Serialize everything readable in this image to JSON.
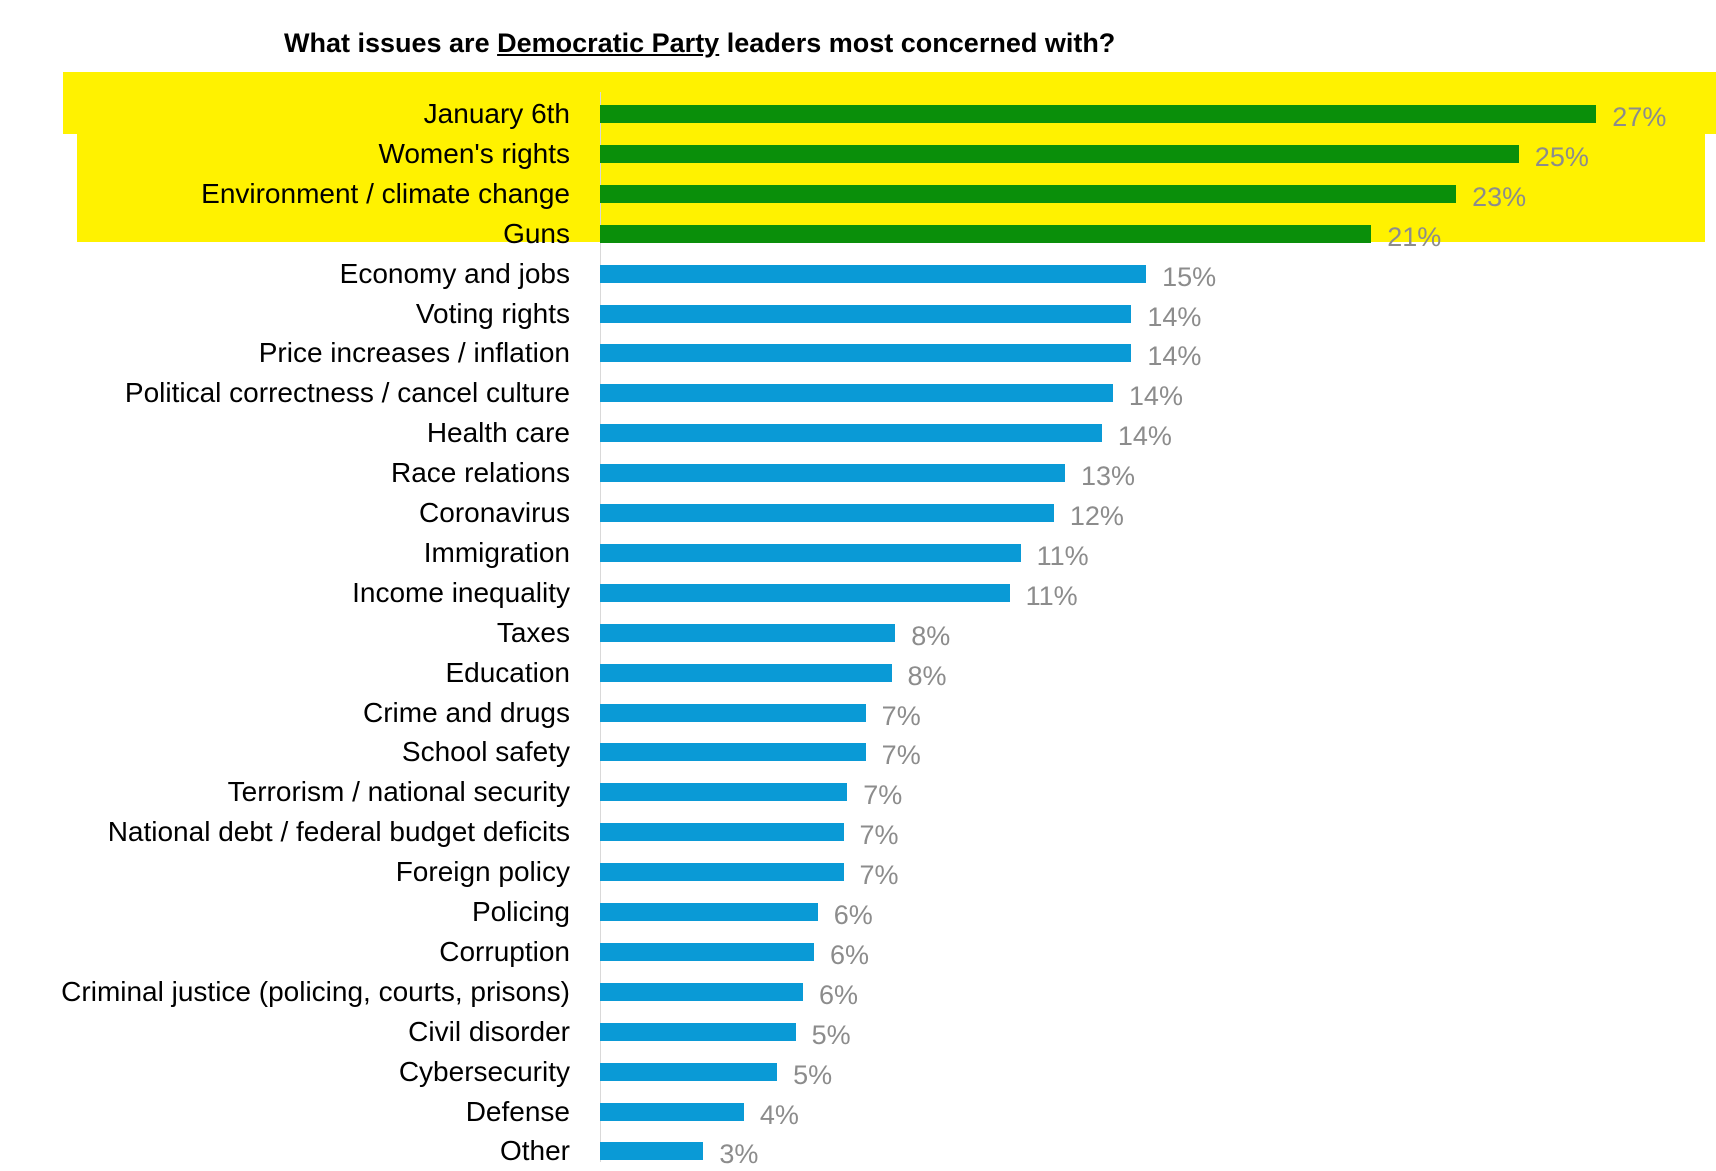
{
  "chart_data": {
    "type": "bar",
    "orientation": "horizontal",
    "title_prefix": "What issues are ",
    "title_underlined": "Democratic Party",
    "title_suffix": " leaders most concerned with?",
    "categories": [
      "January 6th",
      "Women's rights",
      "Environment / climate change",
      "Guns",
      "Economy and jobs",
      "Voting rights",
      "Price increases / inflation",
      "Political correctness / cancel culture",
      "Health care",
      "Race relations",
      "Coronavirus",
      "Immigration",
      "Income inequality",
      "Taxes",
      "Education",
      "Crime and drugs",
      "School safety",
      "Terrorism / national security",
      "National debt / federal budget deficits",
      "Foreign policy",
      "Policing",
      "Corruption",
      "Criminal justice (policing, courts, prisons)",
      "Civil disorder",
      "Cybersecurity",
      "Defense",
      "Other"
    ],
    "values": [
      27,
      25,
      23,
      21,
      15,
      14,
      14,
      14,
      14,
      13,
      12,
      11,
      11,
      8,
      8,
      7,
      7,
      7,
      7,
      7,
      6,
      6,
      6,
      5,
      5,
      4,
      3
    ],
    "bar_lengths": [
      27.0,
      24.9,
      23.2,
      20.9,
      14.8,
      14.4,
      14.4,
      13.9,
      13.6,
      12.6,
      12.3,
      11.4,
      11.1,
      8.0,
      7.9,
      7.2,
      7.2,
      6.7,
      6.6,
      6.6,
      5.9,
      5.8,
      5.5,
      5.3,
      4.8,
      3.9,
      2.8
    ],
    "labels": [
      "27%",
      "25%",
      "23%",
      "21%",
      "15%",
      "14%",
      "14%",
      "14%",
      "14%",
      "13%",
      "12%",
      "11%",
      "11%",
      "8%",
      "8%",
      "7%",
      "7%",
      "7%",
      "7%",
      "7%",
      "6%",
      "6%",
      "6%",
      "5%",
      "5%",
      "4%",
      "3%"
    ],
    "highlighted_count": 4,
    "colors": {
      "highlight_bar": "#0a8f0a",
      "bar": "#0a9ad6",
      "highlight_band": "#fff200",
      "value_label": "#8c8c8c"
    },
    "grid": false,
    "legend": "none"
  }
}
